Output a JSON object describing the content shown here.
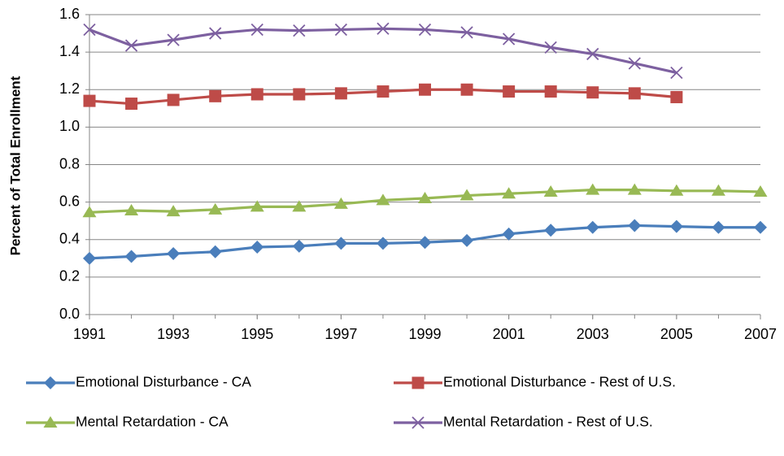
{
  "chart_data": {
    "type": "line",
    "ylabel": "Percent of Total Enrollment",
    "x": [
      1991,
      1992,
      1993,
      1994,
      1995,
      1996,
      1997,
      1998,
      1999,
      2000,
      2001,
      2002,
      2003,
      2004,
      2005,
      2006,
      2007
    ],
    "xlim": [
      1991,
      2007
    ],
    "xticks": [
      1991,
      1993,
      1995,
      1997,
      1999,
      2001,
      2003,
      2005,
      2007
    ],
    "ylim": [
      0,
      1.6
    ],
    "yticks": [
      {
        "value": 0,
        "label": "0.0"
      },
      0.2,
      0.4,
      0.6,
      0.8,
      {
        "value": 1,
        "label": "1.0"
      },
      1.2,
      1.4,
      1.6
    ],
    "grid": true,
    "legend": "bottom",
    "series": [
      {
        "name": "Emotional Disturbance - CA",
        "color": "#4a7ebb",
        "marker": "diamond",
        "values": [
          0.3,
          0.31,
          0.325,
          0.335,
          0.36,
          0.365,
          0.38,
          0.38,
          0.385,
          0.395,
          0.43,
          0.45,
          0.465,
          0.475,
          0.47,
          0.465,
          0.465
        ]
      },
      {
        "name": "Emotional Disturbance - Rest of U.S.",
        "color": "#be4b48",
        "marker": "square",
        "values": [
          1.14,
          1.125,
          1.145,
          1.165,
          1.175,
          1.175,
          1.18,
          1.19,
          1.2,
          1.2,
          1.19,
          1.19,
          1.185,
          1.18,
          1.16,
          null,
          null
        ]
      },
      {
        "name": "Mental Retardation - CA",
        "color": "#98b954",
        "marker": "triangle",
        "values": [
          0.545,
          0.555,
          0.55,
          0.56,
          0.575,
          0.575,
          0.59,
          0.61,
          0.62,
          0.635,
          0.645,
          0.655,
          0.665,
          0.665,
          0.66,
          0.66,
          0.655
        ]
      },
      {
        "name": "Mental Retardation - Rest of U.S.",
        "color": "#7d60a0",
        "marker": "x",
        "values": [
          1.52,
          1.435,
          1.465,
          1.5,
          1.52,
          1.515,
          1.52,
          1.525,
          1.52,
          1.505,
          1.47,
          1.425,
          1.39,
          1.34,
          1.29,
          null,
          null
        ]
      }
    ]
  }
}
